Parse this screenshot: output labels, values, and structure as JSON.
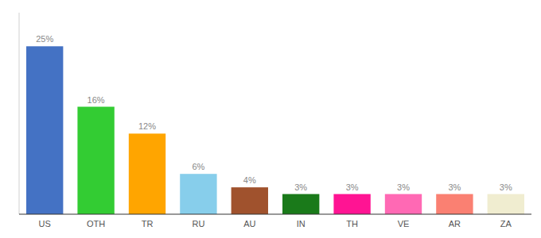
{
  "chart_data": {
    "type": "bar",
    "categories": [
      "US",
      "OTH",
      "TR",
      "RU",
      "AU",
      "IN",
      "TH",
      "VE",
      "AR",
      "ZA"
    ],
    "values": [
      25,
      16,
      12,
      6,
      4,
      3,
      3,
      3,
      3,
      3
    ],
    "value_labels": [
      "25%",
      "16%",
      "12%",
      "6%",
      "4%",
      "3%",
      "3%",
      "3%",
      "3%",
      "3%"
    ],
    "colors": [
      "#4472C4",
      "#33CC33",
      "#FFA500",
      "#87CEEB",
      "#A0522D",
      "#1a7a1a",
      "#FF1493",
      "#FF69B4",
      "#FA8072",
      "#F0EDD0"
    ],
    "ylim": [
      0,
      30
    ],
    "data_labels": true,
    "tick_labels": "x",
    "grid": false
  }
}
